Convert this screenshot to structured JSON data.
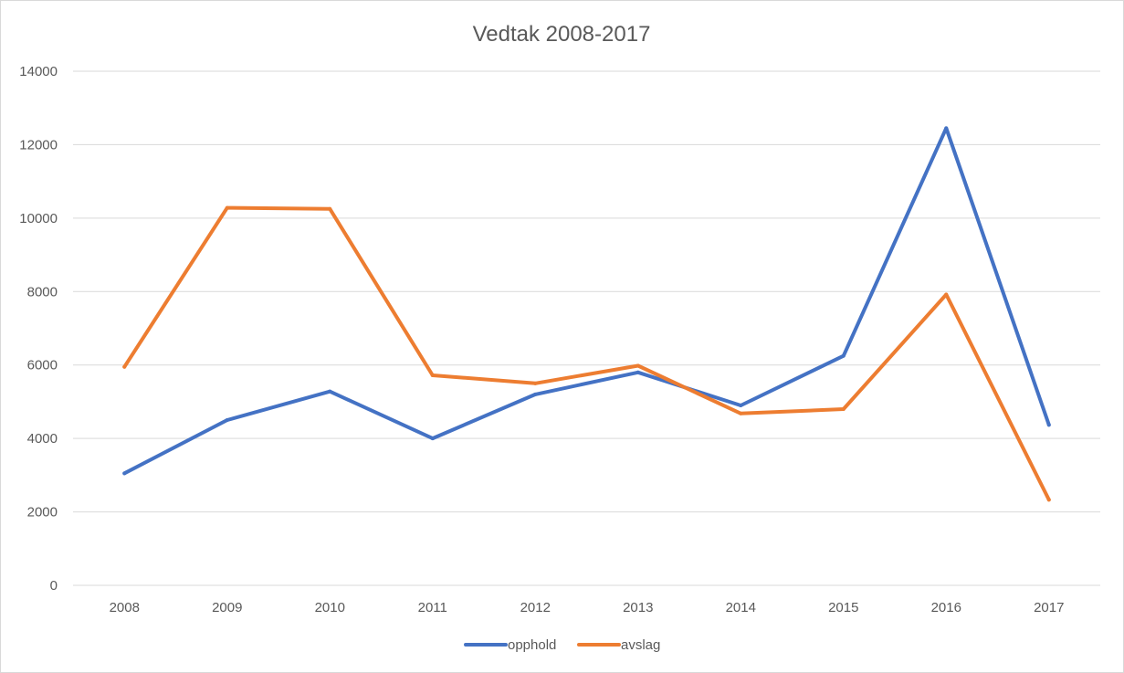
{
  "chart_data": {
    "type": "line",
    "title": "Vedtak 2008-2017",
    "xlabel": "",
    "ylabel": "",
    "categories": [
      "2008",
      "2009",
      "2010",
      "2011",
      "2012",
      "2013",
      "2014",
      "2015",
      "2016",
      "2017"
    ],
    "ylim": [
      0,
      14000
    ],
    "yticks": [
      "0",
      "2000",
      "4000",
      "6000",
      "8000",
      "10000",
      "12000",
      "14000"
    ],
    "grid": true,
    "legend_position": "bottom",
    "series": [
      {
        "name": "opphold",
        "color": "#4472C4",
        "values": [
          3050,
          4500,
          5280,
          4000,
          5200,
          5800,
          4900,
          6250,
          12450,
          4370
        ]
      },
      {
        "name": "avslag",
        "color": "#ED7D31",
        "values": [
          5950,
          10280,
          10250,
          5720,
          5500,
          5980,
          4680,
          4800,
          7920,
          2330
        ]
      }
    ]
  }
}
